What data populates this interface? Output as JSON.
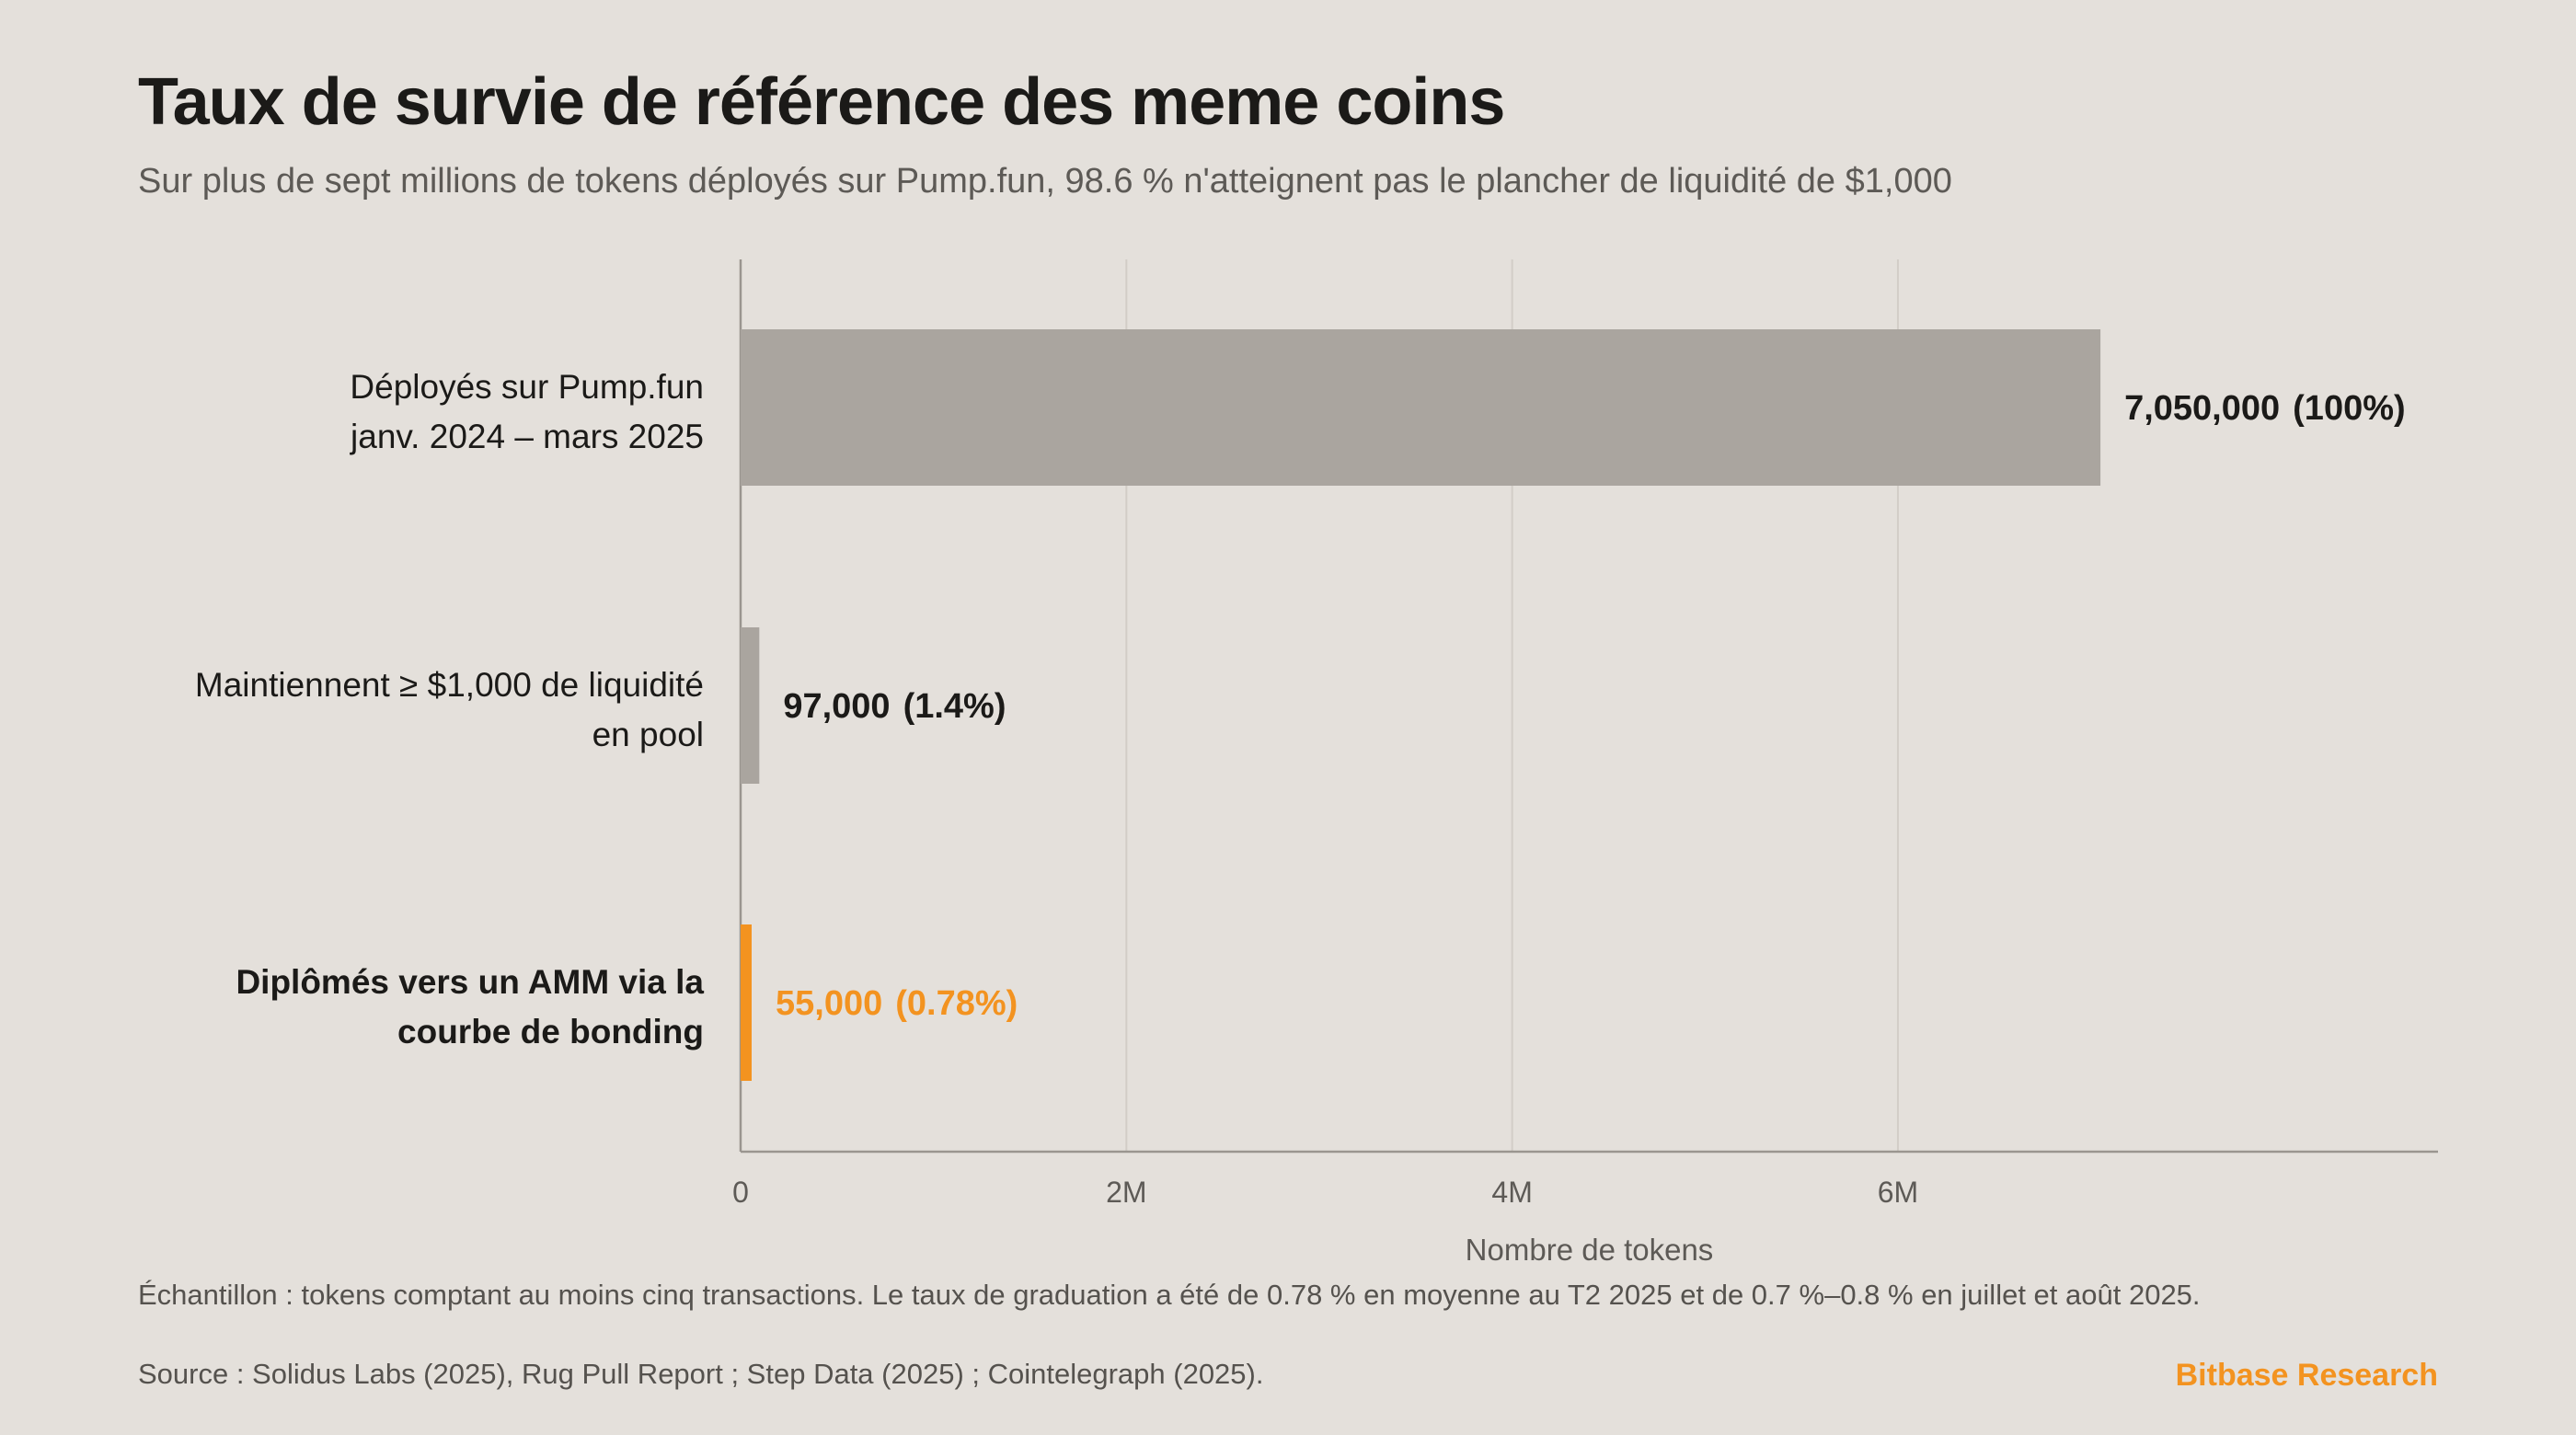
{
  "header": {
    "title": "Taux de survie de référence des meme coins",
    "subtitle": "Sur plus de sept millions de tokens déployés sur Pump.fun, 98.6 % n'atteignent pas le plancher de liquidité de $1,000"
  },
  "footer": {
    "note": "Échantillon : tokens comptant au moins cinq transactions. Le taux de graduation a été de 0.78 % en moyenne au T2 2025 et de 0.7 %–0.8 % en juillet et août 2025.",
    "source": "Source : Solidus Labs (2025), Rug Pull Report ; Step Data (2025) ; Cointelegraph (2025).",
    "brand": "Bitbase Research"
  },
  "colors": {
    "background": "#e4e0db",
    "bar_gray": "#aaa59f",
    "accent": "#f39320",
    "text_dark": "#1b1a18",
    "text_muted": "#5d5a56",
    "grid": "#d2cdc7",
    "axis": "#9a958f"
  },
  "chart_data": {
    "type": "bar",
    "orientation": "horizontal",
    "categories": [
      [
        "Déployés sur Pump.fun",
        "janv. 2024 – mars 2025"
      ],
      [
        "Maintiennent ≥ $1,000 de liquidité",
        "en pool"
      ],
      [
        "Diplômés vers un AMM via la",
        "courbe de bonding"
      ]
    ],
    "values": [
      7050000,
      97000,
      55000
    ],
    "value_labels": [
      "7,050,000",
      "97,000",
      "55,000"
    ],
    "percent_labels": [
      "(100%)",
      "(1.4%)",
      "(0.78%)"
    ],
    "highlight": [
      false,
      false,
      true
    ],
    "xlabel": "Nombre de tokens",
    "xlim": [
      0,
      8800000
    ],
    "xticks": [
      0,
      2000000,
      4000000,
      6000000
    ],
    "xtick_labels": [
      "0",
      "2M",
      "4M",
      "6M"
    ],
    "grid": true,
    "legend": "none"
  }
}
